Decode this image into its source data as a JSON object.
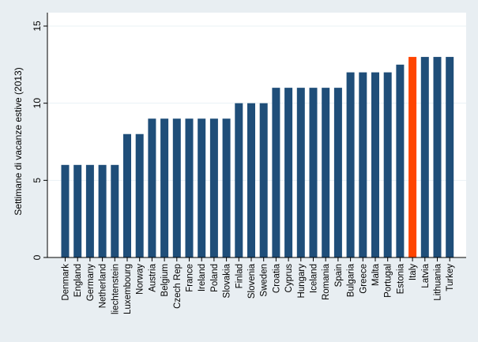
{
  "chart_data": {
    "type": "bar",
    "ylabel": "Settimane di vacanze estive (2013)",
    "xlabel": "",
    "ylim": [
      0,
      15
    ],
    "yticks": [
      0,
      5,
      10,
      15
    ],
    "grid": true,
    "bar_color": "#1f4e79",
    "highlight_color": "#ff4500",
    "highlight_category": "Italy",
    "categories": [
      "Denmark",
      "England",
      "Germany",
      "Netherland",
      "liechtenstein",
      "Luxembourg",
      "Norway",
      "Austria",
      "Belgium",
      "Czech Rep",
      "France",
      "Ireland",
      "Poland",
      "Slovakia",
      "Finlad",
      "Slovenia",
      "Sweden",
      "Croatia",
      "Cyprus",
      "Hungary",
      "Iceland",
      "Romania",
      "Spain",
      "Bulgaria",
      "Greece",
      "Malta",
      "Portugal",
      "Estonia",
      "Italy",
      "Latvia",
      "Lithuania",
      "Turkey"
    ],
    "values": [
      6,
      6,
      6,
      6,
      6,
      8,
      8,
      9,
      9,
      9,
      9,
      9,
      9,
      9,
      10,
      10,
      10,
      11,
      11,
      11,
      11,
      11,
      11,
      12,
      12,
      12,
      12,
      12.5,
      13,
      13,
      13,
      13
    ]
  },
  "colors": {
    "page_background": "#e8eef2",
    "plot_background": "#ffffff",
    "grid": "#eaf1f4"
  }
}
